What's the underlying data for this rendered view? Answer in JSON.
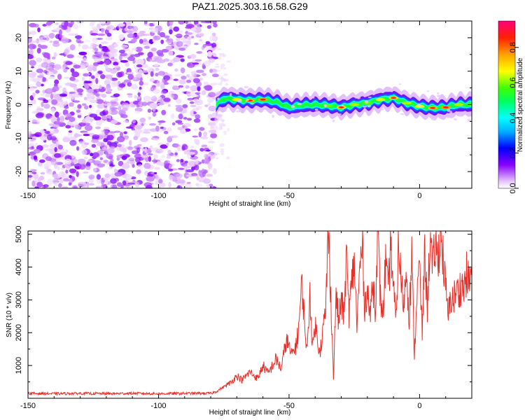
{
  "chart_data": [
    {
      "type": "heatmap",
      "title": "PAZ1.2025.303.16.58.G29",
      "xlabel": "Height of straight line (km)",
      "ylabel": "Frequency (Hz)",
      "xlim": [
        -150,
        20
      ],
      "ylim": [
        -25,
        25
      ],
      "xticks": [
        -150,
        -100,
        -50,
        0
      ],
      "xtick_labels": [
        "-150",
        "-100",
        "-50",
        "0"
      ],
      "yticks": [
        -20,
        -10,
        0,
        10,
        20
      ],
      "ytick_labels": [
        "-20",
        "-10",
        "0",
        "10",
        "20"
      ],
      "noise_region_x": [
        -150,
        -78
      ],
      "signal_region_x": [
        -78,
        20
      ],
      "ridge": {
        "x": [
          -78,
          -75,
          -70,
          -65,
          -60,
          -55,
          -50,
          -45,
          -40,
          -35,
          -30,
          -25,
          -20,
          -15,
          -10,
          -5,
          0,
          5,
          10,
          15,
          20
        ],
        "y": [
          0.0,
          1.8,
          1.5,
          1.2,
          1.5,
          0.8,
          -0.8,
          -0.2,
          0.0,
          -0.3,
          -0.8,
          0.0,
          0.5,
          1.5,
          2.0,
          0.5,
          -0.5,
          -1.0,
          -0.8,
          0.0,
          0.0
        ],
        "amp": [
          0.3,
          0.55,
          0.75,
          0.85,
          0.9,
          0.5,
          0.35,
          0.4,
          0.45,
          0.65,
          0.8,
          0.7,
          0.65,
          0.75,
          0.8,
          0.7,
          0.75,
          0.85,
          0.9,
          0.7,
          0.6
        ]
      },
      "colorbar": {
        "label": "Normalized spectral amplitude",
        "range": [
          0,
          0.95
        ],
        "ticks": [
          0.0,
          0.2,
          0.4,
          0.6,
          0.8
        ],
        "tick_labels": [
          "0.0",
          "0.2",
          "0.4",
          "0.6",
          "0.8"
        ]
      }
    },
    {
      "type": "line",
      "xlabel": "Height of straight line (km)",
      "ylabel": "SNR (10 * v/v)",
      "xlim": [
        -150,
        20
      ],
      "ylim": [
        0,
        5100
      ],
      "xticks": [
        -150,
        -100,
        -50,
        0
      ],
      "xtick_labels": [
        "-150",
        "-100",
        "-50",
        "0"
      ],
      "yticks": [
        1000,
        2000,
        3000,
        4000,
        5000
      ],
      "ytick_labels": [
        "1000",
        "2000",
        "3000",
        "4000",
        "5000"
      ],
      "color": "#e8302a",
      "series": [
        {
          "name": "SNR",
          "x": [
            -150,
            -140,
            -130,
            -120,
            -110,
            -100,
            -90,
            -80,
            -78,
            -75,
            -72,
            -70,
            -68,
            -65,
            -62,
            -60,
            -58,
            -55,
            -53,
            -51,
            -49,
            -47,
            -46,
            -45,
            -44,
            -43,
            -42,
            -41,
            -40,
            -39,
            -38,
            -37,
            -36,
            -35,
            -34,
            -33,
            -32,
            -31,
            -30,
            -29,
            -28,
            -27,
            -26,
            -25,
            -24,
            -23,
            -22,
            -21,
            -20,
            -19,
            -18,
            -17,
            -16,
            -15,
            -14,
            -13,
            -12,
            -11,
            -10,
            -9,
            -8,
            -7,
            -6,
            -5,
            -4,
            -3,
            -2,
            -1,
            0,
            1,
            2,
            3,
            4,
            5,
            6,
            7,
            8,
            9,
            10,
            11,
            12,
            13,
            14,
            15,
            16,
            17,
            18,
            19,
            20
          ],
          "y": [
            150,
            140,
            150,
            140,
            150,
            140,
            150,
            150,
            200,
            350,
            500,
            700,
            550,
            800,
            600,
            1000,
            750,
            1200,
            900,
            1800,
            1300,
            1700,
            2500,
            3500,
            2200,
            1400,
            3300,
            1500,
            2300,
            1700,
            1500,
            2100,
            2600,
            5100,
            3200,
            600,
            3200,
            2300,
            3000,
            2500,
            4300,
            2600,
            3500,
            4200,
            2200,
            3800,
            4700,
            2800,
            3400,
            2400,
            3600,
            2800,
            5000,
            3000,
            2600,
            4200,
            3100,
            4800,
            3300,
            2300,
            4900,
            3400,
            2900,
            4000,
            2500,
            4300,
            1300,
            3200,
            4000,
            2000,
            4500,
            2700,
            5000,
            3800,
            4700,
            4200,
            5100,
            4300,
            3300,
            2500,
            3100,
            3000,
            3300,
            3200,
            3500,
            3300,
            3800,
            3500,
            4000
          ]
        }
      ]
    }
  ]
}
